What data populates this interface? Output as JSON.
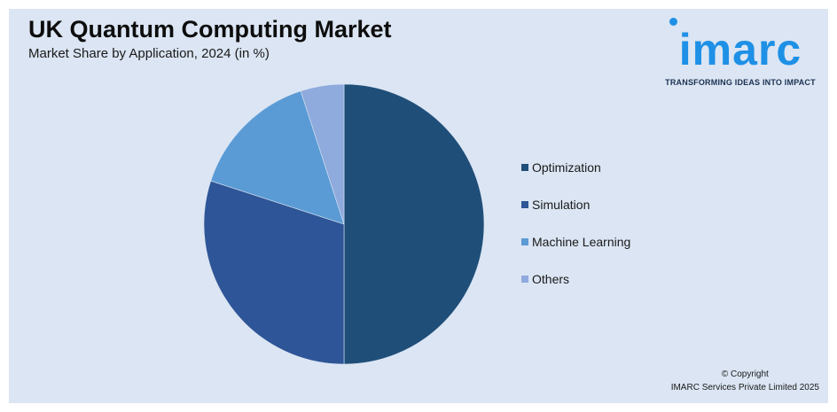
{
  "chart_data": {
    "type": "pie",
    "title": "UK Quantum Computing Market",
    "subtitle": "Market Share by Application, 2024 (in %)",
    "categories": [
      "Optimization",
      "Simulation",
      "Machine Learning",
      "Others"
    ],
    "values": [
      50,
      30,
      15,
      5
    ],
    "colors": [
      "#1f4e79",
      "#2e5597",
      "#5b9bd5",
      "#8faadc"
    ],
    "legend_position": "right"
  },
  "branding": {
    "logo_text": "imarc",
    "tagline": "TRANSFORMING IDEAS INTO IMPACT",
    "copyright_line1": "© Copyright",
    "copyright_line2": "IMARC Services Private Limited 2025"
  }
}
